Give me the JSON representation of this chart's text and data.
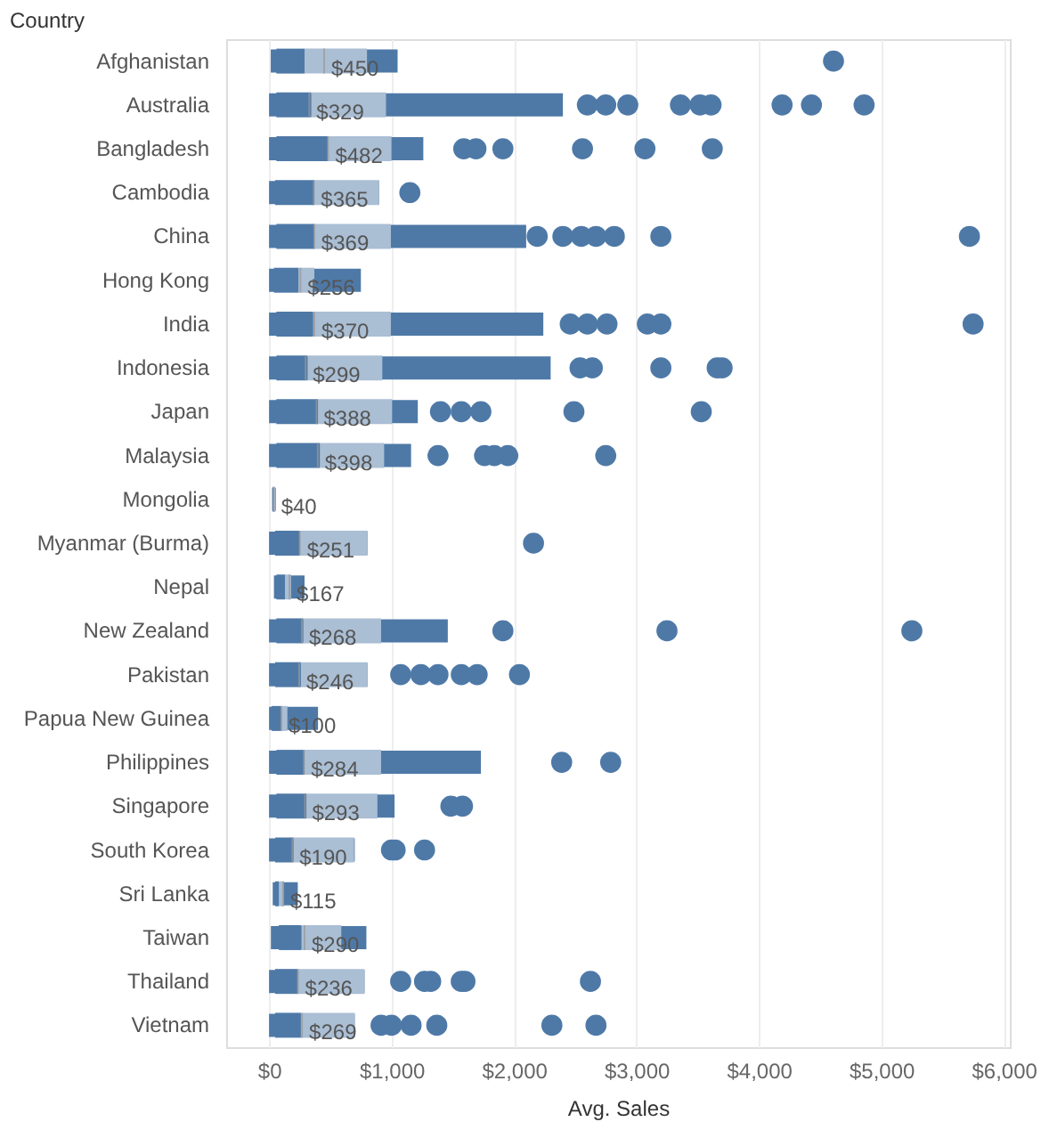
{
  "chart_data": {
    "type": "box",
    "ylabel": "Country",
    "xlabel": "Avg. Sales",
    "categories": [
      "Afghanistan",
      "Australia",
      "Bangladesh",
      "Cambodia",
      "China",
      "Hong Kong",
      "India",
      "Indonesia",
      "Japan",
      "Malaysia",
      "Mongolia",
      "Myanmar (Burma)",
      "Nepal",
      "New Zealand",
      "Pakistan",
      "Papua New Guinea",
      "Philippines",
      "Singapore",
      "South Korea",
      "Sri Lanka",
      "Taiwan",
      "Thailand",
      "Vietnam"
    ],
    "orientation": "horizontal",
    "series": [
      {
        "color": "#4e79a7",
        "boxes": [
          {
            "low": 14,
            "q1": 60,
            "median": 290,
            "q3": 800,
            "high": 1050,
            "mean": 450,
            "outliers": [
              4610
            ]
          },
          {
            "low": 0,
            "q1": 60,
            "median": 345,
            "q3": 955,
            "high": 2400,
            "mean": 329,
            "outliers": [
              2600,
              2750,
              2930,
              3360,
              3520,
              3610,
              4190,
              4430,
              4860
            ]
          },
          {
            "low": 0,
            "q1": 60,
            "median": 480,
            "q3": 1000,
            "high": 1260,
            "mean": 482,
            "outliers": [
              1590,
              1690,
              1910,
              2560,
              3070,
              3620
            ]
          },
          {
            "low": 0,
            "q1": 50,
            "median": 370,
            "q3": 900,
            "high": 900,
            "mean": 365,
            "outliers": [
              1150
            ]
          },
          {
            "low": 0,
            "q1": 60,
            "median": 370,
            "q3": 995,
            "high": 2100,
            "mean": 369,
            "outliers": [
              2190,
              2400,
              2550,
              2670,
              2820,
              3200,
              5720
            ]
          },
          {
            "low": 0,
            "q1": 40,
            "median": 240,
            "q3": 370,
            "high": 750,
            "mean": 256
          },
          {
            "low": 0,
            "q1": 60,
            "median": 360,
            "q3": 995,
            "high": 2240,
            "mean": 370,
            "outliers": [
              2460,
              2600,
              2760,
              3090,
              3200,
              5750
            ]
          },
          {
            "low": 0,
            "q1": 60,
            "median": 315,
            "q3": 925,
            "high": 2300,
            "mean": 299,
            "outliers": [
              2540,
              2640,
              3200,
              3660,
              3700
            ]
          },
          {
            "low": 0,
            "q1": 60,
            "median": 400,
            "q3": 1005,
            "high": 1215,
            "mean": 388,
            "outliers": [
              1400,
              1570,
              1730,
              2490,
              3530
            ]
          },
          {
            "low": 0,
            "q1": 60,
            "median": 415,
            "q3": 940,
            "high": 1160,
            "mean": 398,
            "outliers": [
              1380,
              1760,
              1840,
              1950,
              2750
            ]
          },
          {
            "low": 25,
            "q1": 30,
            "median": 35,
            "q3": 50,
            "high": 55,
            "mean": 40
          },
          {
            "low": 0,
            "q1": 50,
            "median": 250,
            "q3": 805,
            "high": 805,
            "mean": 251,
            "outliers": [
              2160
            ]
          },
          {
            "low": 40,
            "q1": 60,
            "median": 130,
            "q3": 180,
            "high": 290,
            "mean": 167
          },
          {
            "low": 0,
            "q1": 60,
            "median": 280,
            "q3": 915,
            "high": 1460,
            "mean": 268,
            "outliers": [
              1910,
              3250,
              5250
            ]
          },
          {
            "low": 0,
            "q1": 50,
            "median": 260,
            "q3": 805,
            "high": 805,
            "mean": 246,
            "outliers": [
              1075,
              1240,
              1380,
              1570,
              1700,
              2045
            ]
          },
          {
            "low": 0,
            "q1": 20,
            "median": 100,
            "q3": 150,
            "high": 400,
            "mean": 100
          },
          {
            "low": 0,
            "q1": 60,
            "median": 290,
            "q3": 915,
            "high": 1730,
            "mean": 284,
            "outliers": [
              2390,
              2790
            ]
          },
          {
            "low": 0,
            "q1": 60,
            "median": 305,
            "q3": 885,
            "high": 1025,
            "mean": 293,
            "outliers": [
              1485,
              1580
            ]
          },
          {
            "low": 0,
            "q1": 50,
            "median": 200,
            "q3": 695,
            "high": 700,
            "mean": 190,
            "outliers": [
              1000,
              1030,
              1270
            ]
          },
          {
            "low": 30,
            "q1": 50,
            "median": 80,
            "q3": 120,
            "high": 235,
            "mean": 115
          },
          {
            "low": 15,
            "q1": 80,
            "median": 265,
            "q3": 590,
            "high": 795,
            "mean": 290
          },
          {
            "low": 0,
            "q1": 50,
            "median": 235,
            "q3": 780,
            "high": 780,
            "mean": 236,
            "outliers": [
              1075,
              1270,
              1320,
              1570,
              1600,
              2625
            ]
          },
          {
            "low": 0,
            "q1": 50,
            "median": 260,
            "q3": 700,
            "high": 700,
            "mean": 269,
            "outliers": [
              915,
              1000,
              1160,
              1370,
              2310,
              2670
            ]
          }
        ]
      }
    ],
    "value_labels": [
      "$450",
      "$329",
      "$482",
      "$365",
      "$369",
      "$256",
      "$370",
      "$299",
      "$388",
      "$398",
      "$40",
      "$251",
      "$167",
      "$268",
      "$246",
      "$100",
      "$284",
      "$293",
      "$190",
      "$115",
      "$290",
      "$236",
      "$269"
    ],
    "xlim": [
      -350,
      6050
    ],
    "xticks": [
      {
        "value": 0,
        "label": "$0"
      },
      {
        "value": 1000,
        "label": "$1,000"
      },
      {
        "value": 2000,
        "label": "$2,000"
      },
      {
        "value": 3000,
        "label": "$3,000"
      },
      {
        "value": 4000,
        "label": "$4,000"
      },
      {
        "value": 5000,
        "label": "$5,000"
      },
      {
        "value": 6000,
        "label": "$6,000"
      }
    ],
    "grid": "x"
  }
}
